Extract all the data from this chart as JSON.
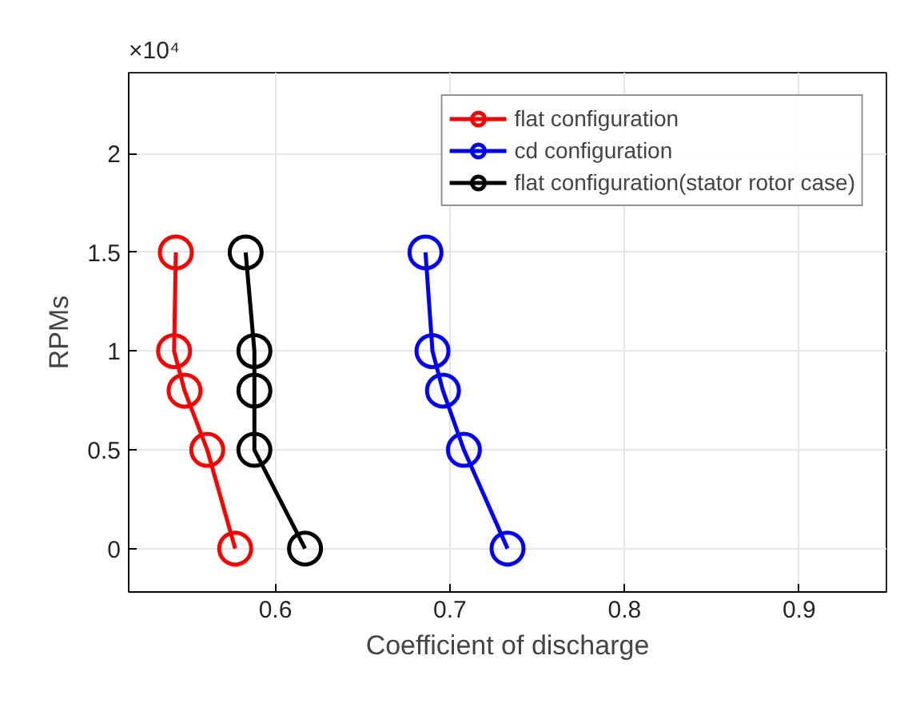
{
  "chart_data": {
    "type": "line",
    "xlabel": "Coefficient of discharge",
    "ylabel": "RPMs",
    "annotations": [
      "×10⁴"
    ],
    "xlim": [
      0.516,
      0.95
    ],
    "xticks": [
      0.6,
      0.7,
      0.8,
      0.9
    ],
    "ylim": [
      -0.22,
      2.41
    ],
    "yticks": [
      0,
      0.5,
      1,
      1.5,
      2
    ],
    "grid": true,
    "legend": "top right",
    "marker": "circle",
    "line_style": "solid",
    "series": [
      {
        "name": "flat configuration",
        "color": "#ff0000",
        "x": [
          0.543,
          0.542,
          0.548,
          0.561,
          0.577
        ],
        "values": [
          1.5,
          1,
          0.8,
          0.5,
          0
        ]
      },
      {
        "name": "cd configuration",
        "color": "#0000ff",
        "x": [
          0.686,
          0.69,
          0.696,
          0.708,
          0.733
        ],
        "values": [
          1.5,
          1,
          0.8,
          0.5,
          0
        ]
      },
      {
        "name": "flat configuration(stator rotor case)",
        "color": "#000000",
        "x": [
          0.583,
          0.588,
          0.588,
          0.588,
          0.617
        ],
        "values": [
          1.5,
          1,
          0.8,
          0.5,
          0
        ]
      }
    ]
  }
}
